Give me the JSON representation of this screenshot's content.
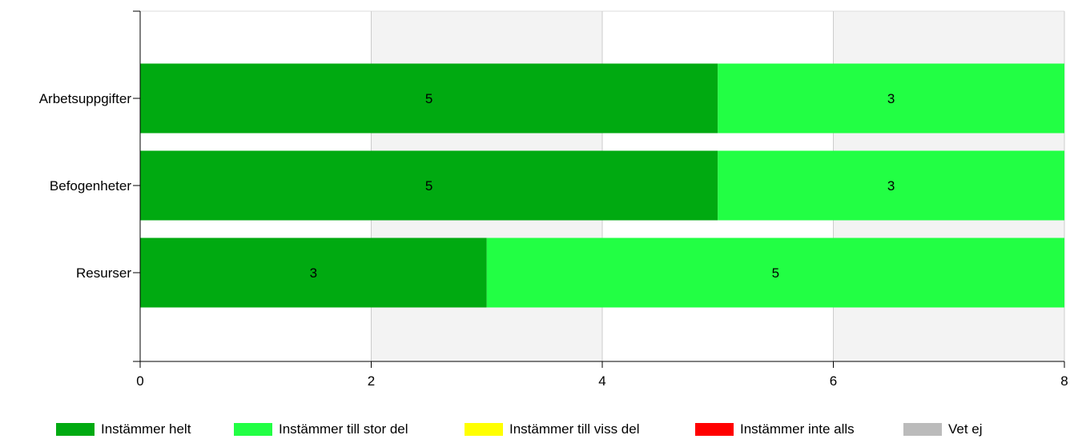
{
  "chart_data": {
    "type": "bar",
    "orientation": "horizontal",
    "stacked": true,
    "categories": [
      "Arbetsuppgifter",
      "Befogenheter",
      "Resurser"
    ],
    "series": [
      {
        "name": "Instämmer helt",
        "color": "#00aa11",
        "values": [
          5,
          5,
          3
        ]
      },
      {
        "name": "Instämmer till stor del",
        "color": "#22ff44",
        "values": [
          3,
          3,
          5
        ]
      },
      {
        "name": "Instämmer till viss del",
        "color": "#ffff00",
        "values": [
          0,
          0,
          0
        ]
      },
      {
        "name": "Instämmer inte alls",
        "color": "#ff0000",
        "values": [
          0,
          0,
          0
        ]
      },
      {
        "name": "Vet ej",
        "color": "#bbbbbb",
        "values": [
          0,
          0,
          0
        ]
      }
    ],
    "xlim": [
      0,
      8
    ],
    "xticks": [
      "0",
      "2",
      "4",
      "6",
      "8"
    ],
    "grid": true,
    "legend_position": "bottom"
  }
}
